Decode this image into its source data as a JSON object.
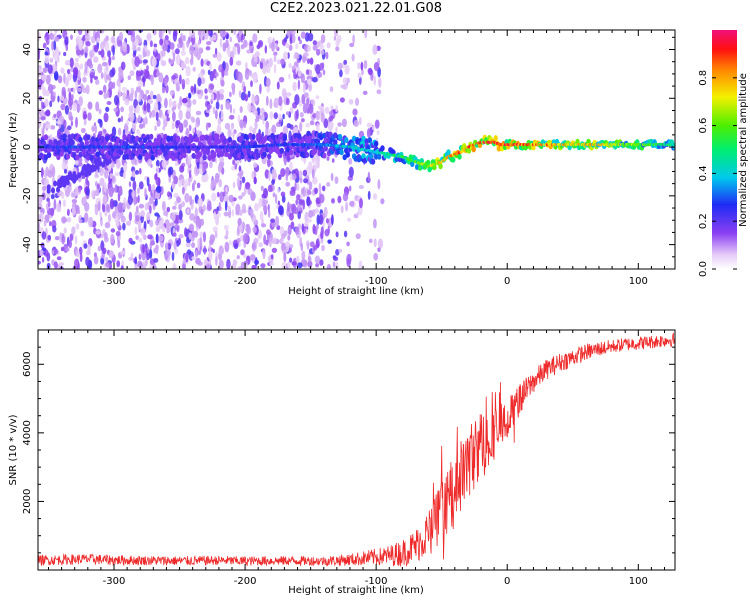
{
  "title": "C2E2.2023.021.22.01.G08",
  "chart_data": [
    {
      "type": "heatmap",
      "xlabel": "Height of straight line (km)",
      "ylabel": "Frequency (Hz)",
      "xlim": [
        -358,
        128
      ],
      "ylim": [
        -50,
        48
      ],
      "xticks": [
        -300,
        -200,
        -100,
        0,
        100
      ],
      "yticks": [
        -40,
        -20,
        0,
        20,
        40
      ],
      "colorbar": {
        "label": "Normalized spectral amplitude",
        "ticks": [
          0.0,
          0.2,
          0.4,
          0.6,
          0.8
        ],
        "tick_labels": [
          "0.0",
          "0.2",
          "0.4",
          "0.6",
          "0.8"
        ],
        "range": [
          0,
          1
        ],
        "colormap": "rainbow (white → purple → blue → cyan → green → yellow → red → magenta)"
      },
      "ridge": {
        "description": "dominant spectral line (frequency offset vs height)",
        "x": [
          -350,
          -320,
          -290,
          -260,
          -230,
          -200,
          -170,
          -140,
          -120,
          -100,
          -90,
          -80,
          -70,
          -60,
          -55,
          -50,
          -45,
          -40,
          -35,
          -30,
          -25,
          -20,
          -15,
          -10,
          -5,
          0,
          20,
          40,
          60,
          80,
          100,
          128
        ],
        "y": [
          0,
          0,
          0,
          0,
          0,
          0,
          1,
          1,
          0,
          -2,
          -3,
          -4,
          -6,
          -8,
          -7,
          -6,
          -4,
          -3,
          -2,
          0,
          1,
          2,
          2,
          2,
          1,
          1,
          1,
          1,
          1,
          1,
          1,
          1
        ],
        "amplitude": [
          0.3,
          0.3,
          0.3,
          0.3,
          0.25,
          0.3,
          0.3,
          0.35,
          0.45,
          0.45,
          0.5,
          0.55,
          0.6,
          0.7,
          0.75,
          0.8,
          0.85,
          0.85,
          0.9,
          0.9,
          0.92,
          0.95,
          0.95,
          0.95,
          0.95,
          0.95,
          0.9,
          0.85,
          0.8,
          0.75,
          0.65,
          0.5
        ]
      },
      "lower_branch": {
        "description": "secondary weak line at low heights",
        "x": [
          -350,
          -330,
          -310,
          -295
        ],
        "y": [
          -18,
          -12,
          -6,
          -2
        ]
      },
      "noise_extent_x": [
        -358,
        -95
      ]
    },
    {
      "type": "line",
      "xlabel": "Height of straight line (km)",
      "ylabel": "SNR (10 * v/v)",
      "xlim": [
        -358,
        128
      ],
      "ylim": [
        0,
        7000
      ],
      "xticks": [
        -300,
        -200,
        -100,
        0,
        100
      ],
      "yticks": [
        2000,
        4000,
        6000
      ],
      "series": [
        {
          "color": "#ee2a2a",
          "x": [
            -358,
            -340,
            -320,
            -300,
            -280,
            -260,
            -240,
            -220,
            -200,
            -180,
            -160,
            -140,
            -120,
            -100,
            -90,
            -80,
            -70,
            -60,
            -50,
            -40,
            -30,
            -20,
            -10,
            0,
            10,
            20,
            30,
            40,
            50,
            60,
            70,
            80,
            90,
            100,
            110,
            120,
            128
          ],
          "y": [
            280,
            300,
            320,
            290,
            280,
            270,
            270,
            280,
            260,
            270,
            270,
            260,
            300,
            380,
            420,
            500,
            700,
            1100,
            1700,
            2400,
            3100,
            3700,
            4000,
            4400,
            5000,
            5500,
            5850,
            6050,
            6200,
            6350,
            6450,
            6520,
            6580,
            6620,
            6650,
            6700,
            6720
          ],
          "noise_amplitude": [
            150,
            150,
            150,
            150,
            140,
            140,
            140,
            140,
            140,
            140,
            140,
            140,
            180,
            250,
            300,
            400,
            500,
            700,
            900,
            1000,
            1100,
            1000,
            800,
            600,
            450,
            350,
            300,
            280,
            260,
            240,
            220,
            200,
            200,
            200,
            200,
            200,
            200
          ]
        }
      ]
    }
  ]
}
